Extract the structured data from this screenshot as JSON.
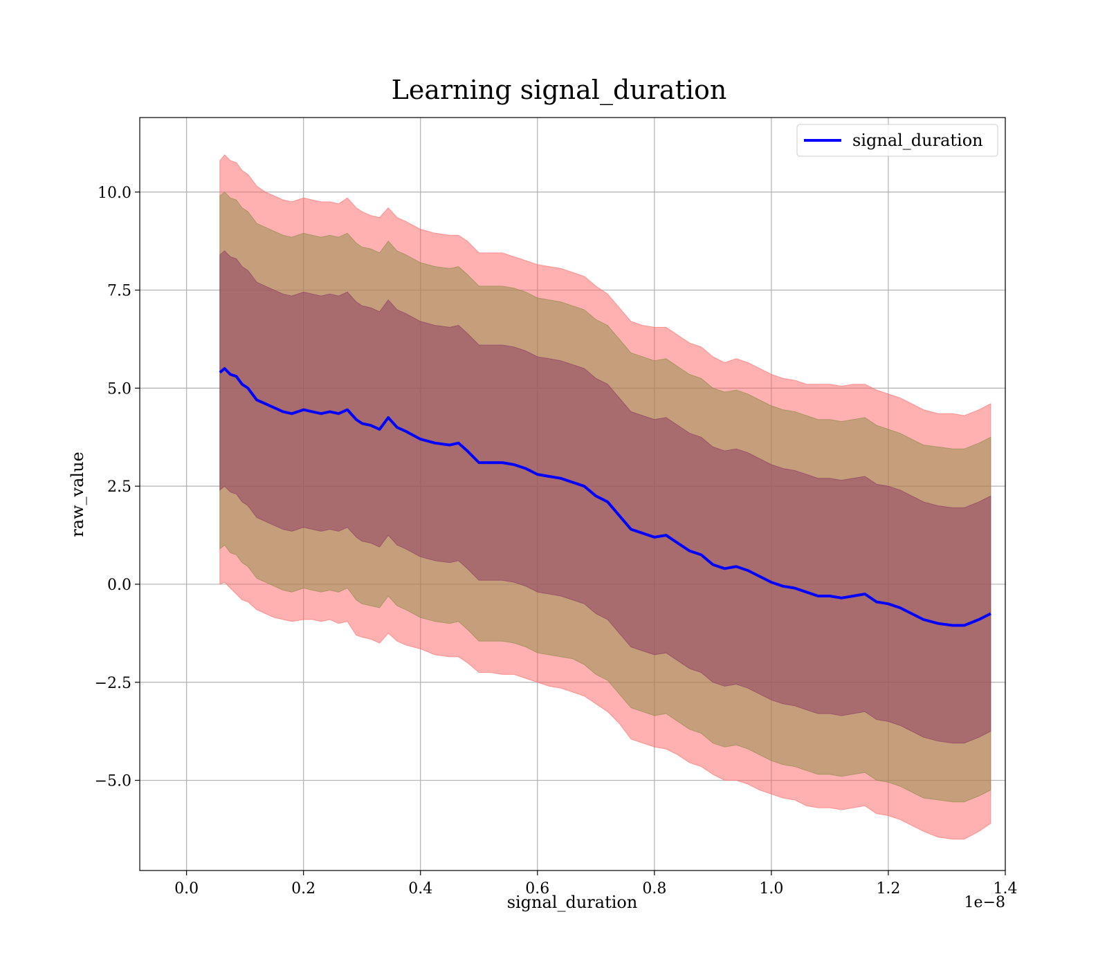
{
  "chart_data": {
    "type": "area",
    "title": "Learning signal_duration",
    "xlabel": "signal_duration",
    "ylabel": "raw_value",
    "x_offset_label": "1e−8",
    "xlim": [
      -0.08,
      1.4
    ],
    "ylim": [
      -7.3,
      11.9
    ],
    "xticks": [
      0.0,
      0.2,
      0.4,
      0.6,
      0.8,
      1.0,
      1.2,
      1.4
    ],
    "xtick_labels": [
      "0.0",
      "0.2",
      "0.4",
      "0.6",
      "0.8",
      "1.0",
      "1.2",
      "1.4"
    ],
    "yticks": [
      -5.0,
      -2.5,
      0.0,
      2.5,
      5.0,
      7.5,
      10.0
    ],
    "ytick_labels": [
      "−5.0",
      "−2.5",
      "0.0",
      "2.5",
      "5.0",
      "7.5",
      "10.0"
    ],
    "grid": true,
    "legend_position": "top-right",
    "series": [
      {
        "name": "signal_duration",
        "color": "#0000ff",
        "x": [
          0.057,
          0.065,
          0.075,
          0.085,
          0.095,
          0.105,
          0.12,
          0.135,
          0.15,
          0.165,
          0.18,
          0.2,
          0.215,
          0.23,
          0.245,
          0.26,
          0.275,
          0.29,
          0.3,
          0.315,
          0.33,
          0.345,
          0.36,
          0.375,
          0.4,
          0.425,
          0.45,
          0.465,
          0.48,
          0.5,
          0.52,
          0.54,
          0.56,
          0.58,
          0.6,
          0.62,
          0.64,
          0.66,
          0.68,
          0.7,
          0.72,
          0.74,
          0.76,
          0.78,
          0.8,
          0.82,
          0.84,
          0.86,
          0.88,
          0.9,
          0.92,
          0.94,
          0.96,
          0.98,
          1.0,
          1.02,
          1.04,
          1.06,
          1.08,
          1.1,
          1.12,
          1.14,
          1.16,
          1.18,
          1.2,
          1.22,
          1.24,
          1.26,
          1.285,
          1.31,
          1.33,
          1.355,
          1.375
        ],
        "values": [
          5.4,
          5.5,
          5.35,
          5.3,
          5.1,
          5.0,
          4.7,
          4.6,
          4.5,
          4.4,
          4.35,
          4.45,
          4.4,
          4.35,
          4.4,
          4.35,
          4.45,
          4.2,
          4.1,
          4.05,
          3.95,
          4.25,
          4.0,
          3.9,
          3.7,
          3.6,
          3.55,
          3.6,
          3.4,
          3.1,
          3.1,
          3.1,
          3.05,
          2.95,
          2.8,
          2.75,
          2.7,
          2.6,
          2.5,
          2.25,
          2.1,
          1.75,
          1.4,
          1.3,
          1.2,
          1.25,
          1.05,
          0.85,
          0.75,
          0.5,
          0.4,
          0.45,
          0.35,
          0.2,
          0.05,
          -0.05,
          -0.1,
          -0.2,
          -0.3,
          -0.3,
          -0.35,
          -0.3,
          -0.25,
          -0.45,
          -0.5,
          -0.6,
          -0.75,
          -0.9,
          -1.0,
          -1.05,
          -1.05,
          -0.9,
          -0.75
        ]
      }
    ],
    "bands": [
      {
        "level": "outer",
        "color": "#ff6464",
        "lower": [
          0.0,
          0.05,
          -0.1,
          -0.25,
          -0.4,
          -0.45,
          -0.65,
          -0.75,
          -0.85,
          -0.9,
          -0.95,
          -0.9,
          -0.9,
          -0.95,
          -0.9,
          -1.0,
          -0.95,
          -1.3,
          -1.35,
          -1.4,
          -1.5,
          -1.25,
          -1.45,
          -1.55,
          -1.65,
          -1.8,
          -1.85,
          -1.85,
          -2.0,
          -2.25,
          -2.25,
          -2.3,
          -2.3,
          -2.4,
          -2.5,
          -2.6,
          -2.65,
          -2.75,
          -2.85,
          -3.05,
          -3.25,
          -3.55,
          -3.95,
          -4.05,
          -4.15,
          -4.2,
          -4.35,
          -4.55,
          -4.65,
          -4.85,
          -5.0,
          -5.0,
          -5.1,
          -5.25,
          -5.35,
          -5.45,
          -5.5,
          -5.65,
          -5.7,
          -5.7,
          -5.75,
          -5.7,
          -5.65,
          -5.85,
          -5.9,
          -6.0,
          -6.15,
          -6.3,
          -6.45,
          -6.5,
          -6.5,
          -6.3,
          -6.1
        ],
        "upper": [
          10.8,
          10.95,
          10.8,
          10.75,
          10.55,
          10.45,
          10.15,
          10.0,
          9.9,
          9.8,
          9.75,
          9.85,
          9.8,
          9.75,
          9.75,
          9.7,
          9.85,
          9.6,
          9.5,
          9.4,
          9.35,
          9.6,
          9.35,
          9.25,
          9.05,
          8.95,
          8.9,
          8.9,
          8.75,
          8.45,
          8.45,
          8.45,
          8.35,
          8.25,
          8.15,
          8.1,
          8.05,
          7.95,
          7.85,
          7.6,
          7.4,
          7.05,
          6.7,
          6.6,
          6.55,
          6.55,
          6.35,
          6.15,
          6.05,
          5.8,
          5.65,
          5.75,
          5.65,
          5.5,
          5.35,
          5.25,
          5.2,
          5.1,
          5.1,
          5.1,
          5.05,
          5.1,
          5.1,
          4.95,
          4.85,
          4.75,
          4.6,
          4.45,
          4.35,
          4.35,
          4.3,
          4.45,
          4.6
        ]
      },
      {
        "level": "middle",
        "color": "#8b8b46",
        "lower": [
          0.9,
          1.0,
          0.8,
          0.75,
          0.55,
          0.45,
          0.15,
          0.05,
          -0.05,
          -0.15,
          -0.2,
          -0.1,
          -0.15,
          -0.2,
          -0.15,
          -0.2,
          -0.1,
          -0.4,
          -0.5,
          -0.55,
          -0.6,
          -0.3,
          -0.55,
          -0.65,
          -0.85,
          -0.95,
          -1.0,
          -0.95,
          -1.15,
          -1.45,
          -1.45,
          -1.45,
          -1.5,
          -1.6,
          -1.75,
          -1.8,
          -1.85,
          -1.9,
          -2.05,
          -2.3,
          -2.45,
          -2.8,
          -3.15,
          -3.25,
          -3.35,
          -3.3,
          -3.5,
          -3.7,
          -3.8,
          -4.05,
          -4.15,
          -4.1,
          -4.2,
          -4.35,
          -4.5,
          -4.6,
          -4.65,
          -4.75,
          -4.85,
          -4.85,
          -4.9,
          -4.85,
          -4.8,
          -5.0,
          -5.05,
          -5.15,
          -5.3,
          -5.45,
          -5.5,
          -5.55,
          -5.55,
          -5.4,
          -5.25
        ],
        "upper": [
          9.9,
          10.0,
          9.85,
          9.8,
          9.6,
          9.5,
          9.2,
          9.1,
          9.0,
          8.9,
          8.85,
          8.95,
          8.9,
          8.85,
          8.9,
          8.85,
          8.95,
          8.7,
          8.6,
          8.55,
          8.45,
          8.75,
          8.5,
          8.4,
          8.2,
          8.1,
          8.05,
          8.1,
          7.9,
          7.6,
          7.6,
          7.6,
          7.55,
          7.45,
          7.3,
          7.25,
          7.2,
          7.1,
          7.0,
          6.75,
          6.6,
          6.25,
          5.9,
          5.8,
          5.7,
          5.75,
          5.55,
          5.35,
          5.25,
          5.0,
          4.9,
          4.95,
          4.85,
          4.7,
          4.55,
          4.45,
          4.4,
          4.3,
          4.2,
          4.2,
          4.15,
          4.2,
          4.25,
          4.05,
          3.95,
          3.85,
          3.7,
          3.55,
          3.5,
          3.45,
          3.45,
          3.6,
          3.75
        ]
      },
      {
        "level": "inner",
        "color": "#8b3a62",
        "lower": [
          2.4,
          2.5,
          2.35,
          2.3,
          2.1,
          2.0,
          1.7,
          1.6,
          1.5,
          1.4,
          1.35,
          1.45,
          1.4,
          1.35,
          1.4,
          1.35,
          1.45,
          1.2,
          1.1,
          1.05,
          0.95,
          1.25,
          1.0,
          0.9,
          0.7,
          0.6,
          0.55,
          0.6,
          0.4,
          0.1,
          0.1,
          0.1,
          0.05,
          -0.05,
          -0.2,
          -0.25,
          -0.3,
          -0.4,
          -0.5,
          -0.75,
          -0.9,
          -1.25,
          -1.6,
          -1.7,
          -1.8,
          -1.75,
          -1.95,
          -2.15,
          -2.25,
          -2.5,
          -2.6,
          -2.55,
          -2.65,
          -2.8,
          -2.95,
          -3.05,
          -3.1,
          -3.2,
          -3.3,
          -3.3,
          -3.35,
          -3.3,
          -3.25,
          -3.45,
          -3.5,
          -3.6,
          -3.75,
          -3.9,
          -4.0,
          -4.05,
          -4.05,
          -3.9,
          -3.75
        ],
        "upper": [
          8.4,
          8.5,
          8.35,
          8.3,
          8.1,
          8.0,
          7.7,
          7.6,
          7.5,
          7.4,
          7.35,
          7.45,
          7.4,
          7.35,
          7.4,
          7.35,
          7.45,
          7.2,
          7.1,
          7.05,
          6.95,
          7.25,
          7.0,
          6.9,
          6.7,
          6.6,
          6.55,
          6.6,
          6.4,
          6.1,
          6.1,
          6.1,
          6.05,
          5.95,
          5.8,
          5.75,
          5.7,
          5.6,
          5.5,
          5.25,
          5.1,
          4.75,
          4.4,
          4.3,
          4.2,
          4.25,
          4.05,
          3.85,
          3.75,
          3.5,
          3.4,
          3.45,
          3.35,
          3.2,
          3.05,
          2.95,
          2.9,
          2.8,
          2.7,
          2.7,
          2.65,
          2.7,
          2.75,
          2.55,
          2.5,
          2.4,
          2.25,
          2.1,
          2.0,
          1.95,
          1.95,
          2.1,
          2.25
        ]
      }
    ]
  }
}
